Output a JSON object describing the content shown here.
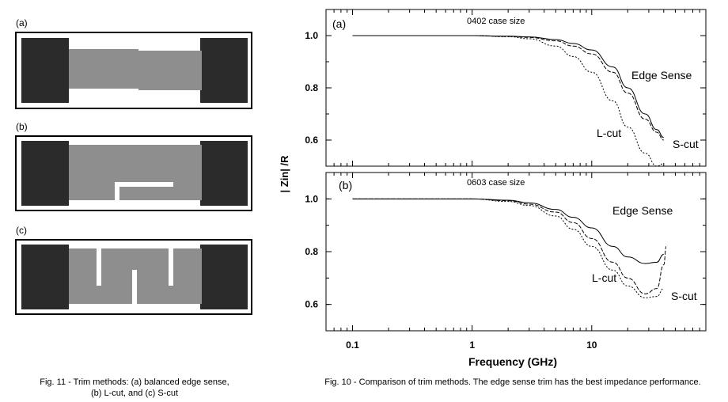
{
  "trim_figure": {
    "panel_labels": [
      "(a)",
      "(b)",
      "(c)"
    ],
    "caption_line1": "Fig. 11 - Trim methods: (a) balanced edge sense,",
    "caption_line2": "(b) L-cut, and (c) S-cut"
  },
  "chart_caption": "Fig. 10 - Comparison of trim methods. The edge sense trim has the best impedance performance.",
  "chart_data": [
    {
      "type": "line",
      "panel_label": "(a)",
      "title": "0402 case size",
      "xlabel": "Frequency (GHz)",
      "ylabel": "| Zin| /R",
      "x_scale": "log",
      "xlim": [
        0.06,
        90
      ],
      "ylim": [
        0.5,
        1.1
      ],
      "y_ticks": [
        "1.0",
        "0.8",
        "0.6"
      ],
      "y_tick_values": [
        1.0,
        0.8,
        0.6
      ],
      "grid": false,
      "series": [
        {
          "name": "Edge Sense",
          "x": [
            0.1,
            1,
            2,
            3,
            5,
            7,
            10,
            15,
            20,
            28,
            35,
            40
          ],
          "y": [
            1.0,
            1.0,
            0.998,
            0.995,
            0.985,
            0.97,
            0.945,
            0.88,
            0.8,
            0.7,
            0.64,
            0.61
          ]
        },
        {
          "name": "S-cut",
          "x": [
            0.1,
            1,
            2,
            3,
            5,
            7,
            10,
            15,
            20,
            28,
            35,
            40
          ],
          "y": [
            1.0,
            1.0,
            0.997,
            0.993,
            0.98,
            0.96,
            0.93,
            0.86,
            0.78,
            0.68,
            0.63,
            0.6
          ]
        },
        {
          "name": "L-cut",
          "x": [
            0.1,
            1,
            2,
            3,
            5,
            7,
            10,
            15,
            20,
            28,
            35,
            40
          ],
          "y": [
            1.0,
            1.0,
            0.996,
            0.988,
            0.96,
            0.92,
            0.86,
            0.75,
            0.65,
            0.55,
            0.5,
            0.51
          ]
        }
      ]
    },
    {
      "type": "line",
      "panel_label": "(b)",
      "title": "0603 case size",
      "xlabel": "Frequency (GHz)",
      "ylabel": "| Zin| /R",
      "x_scale": "log",
      "xlim": [
        0.06,
        90
      ],
      "ylim": [
        0.5,
        1.1
      ],
      "y_ticks": [
        "1.0",
        "0.8",
        "0.6"
      ],
      "y_tick_values": [
        1.0,
        0.8,
        0.6
      ],
      "x_ticks": [
        "0.1",
        "1",
        "10"
      ],
      "x_tick_values": [
        0.1,
        1,
        10
      ],
      "grid": false,
      "series": [
        {
          "name": "Edge Sense",
          "x": [
            0.1,
            1,
            2,
            3,
            5,
            7,
            10,
            15,
            20,
            28,
            35,
            40
          ],
          "y": [
            1.0,
            1.0,
            0.995,
            0.985,
            0.96,
            0.93,
            0.89,
            0.82,
            0.78,
            0.755,
            0.76,
            0.79
          ]
        },
        {
          "name": "S-cut",
          "x": [
            0.1,
            1,
            2,
            3,
            5,
            7,
            10,
            15,
            20,
            28,
            35,
            40,
            42
          ],
          "y": [
            1.0,
            1.0,
            0.993,
            0.98,
            0.95,
            0.91,
            0.85,
            0.76,
            0.7,
            0.64,
            0.66,
            0.75,
            0.82
          ]
        },
        {
          "name": "L-cut",
          "x": [
            0.1,
            1,
            2,
            3,
            5,
            7,
            10,
            15,
            20,
            28,
            35,
            40
          ],
          "y": [
            1.0,
            1.0,
            0.99,
            0.975,
            0.935,
            0.885,
            0.82,
            0.73,
            0.67,
            0.625,
            0.63,
            0.66
          ]
        }
      ],
      "annotations": [
        "Edge Sense",
        "L-cut",
        "S-cut"
      ]
    }
  ]
}
